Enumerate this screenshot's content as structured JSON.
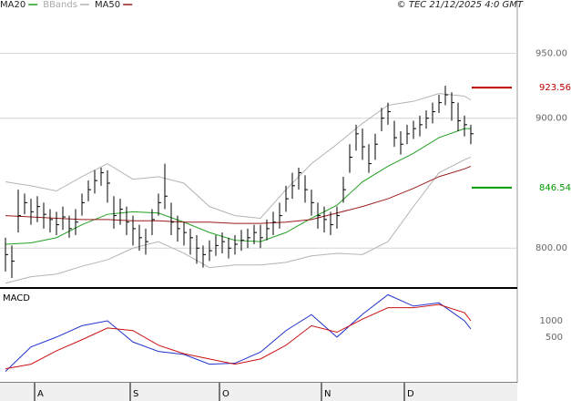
{
  "chart_data": [
    {
      "type": "ohlc",
      "copyright": "© TEC 21/12/2025 4:0 GMT",
      "color": "#000000",
      "high": [
        808,
        802,
        845,
        842,
        838,
        840,
        835,
        830,
        828,
        832,
        825,
        830,
        842,
        852,
        860,
        862,
        860,
        840,
        838,
        832,
        825,
        818,
        815,
        830,
        842,
        865,
        835,
        825,
        820,
        815,
        810,
        802,
        806,
        810,
        812,
        808,
        810,
        814,
        815,
        818,
        818,
        822,
        828,
        835,
        848,
        858,
        862,
        856,
        845,
        835,
        832,
        828,
        832,
        855,
        880,
        895,
        892,
        880,
        888,
        908,
        912,
        898,
        890,
        895,
        898,
        902,
        906,
        912,
        918,
        925,
        920,
        912,
        902,
        895
      ],
      "low": [
        782,
        777,
        812,
        826,
        818,
        820,
        815,
        812,
        810,
        814,
        808,
        810,
        825,
        836,
        842,
        848,
        835,
        815,
        818,
        810,
        802,
        798,
        795,
        810,
        825,
        830,
        810,
        805,
        802,
        795,
        788,
        785,
        790,
        794,
        796,
        792,
        795,
        798,
        800,
        803,
        800,
        806,
        810,
        815,
        828,
        838,
        845,
        835,
        825,
        815,
        812,
        810,
        815,
        835,
        858,
        875,
        868,
        858,
        868,
        890,
        895,
        878,
        872,
        880,
        884,
        886,
        892,
        896,
        904,
        910,
        898,
        890,
        886,
        880
      ],
      "close": [
        795,
        790,
        825,
        835,
        828,
        832,
        826,
        822,
        818,
        824,
        815,
        820,
        835,
        845,
        852,
        858,
        850,
        825,
        830,
        820,
        815,
        808,
        805,
        822,
        835,
        840,
        820,
        815,
        812,
        808,
        800,
        795,
        798,
        802,
        805,
        800,
        803,
        806,
        808,
        812,
        808,
        815,
        820,
        825,
        838,
        848,
        858,
        845,
        835,
        825,
        822,
        818,
        825,
        845,
        870,
        888,
        878,
        865,
        880,
        900,
        905,
        885,
        880,
        888,
        892,
        895,
        900,
        905,
        912,
        918,
        912,
        898,
        895,
        888
      ],
      "ylim": [
        770,
        991
      ],
      "yticks": [
        {
          "value": 800,
          "label": "800.00"
        },
        {
          "value": 900,
          "label": "900.00"
        },
        {
          "value": 950,
          "label": "950.00"
        }
      ],
      "grid": true,
      "series": [
        {
          "name": "MA20",
          "color": "#22a022",
          "x": [
            0,
            4,
            8,
            12,
            16,
            20,
            24,
            28,
            32,
            36,
            40,
            44,
            48,
            52,
            56,
            60,
            64,
            68,
            72,
            73
          ],
          "values": [
            803,
            804,
            808,
            818,
            826,
            828,
            827,
            820,
            812,
            806,
            805,
            812,
            823,
            833,
            851,
            863,
            873,
            885,
            892,
            892
          ]
        },
        {
          "name": "BBands",
          "color": "#b4b4b4",
          "x": [
            0,
            4,
            8,
            12,
            16,
            20,
            24,
            28,
            32,
            36,
            40,
            44,
            48,
            52,
            56,
            60,
            64,
            68,
            72,
            73
          ],
          "upper": [
            851,
            848,
            844,
            855,
            865,
            853,
            855,
            850,
            832,
            825,
            823,
            845,
            865,
            880,
            896,
            910,
            913,
            919,
            917,
            914
          ],
          "lower": [
            773,
            778,
            780,
            786,
            791,
            800,
            805,
            796,
            785,
            787,
            787,
            789,
            794,
            796,
            795,
            805,
            832,
            858,
            868,
            870
          ]
        },
        {
          "name": "MA50",
          "color": "#9b1c1c",
          "x": [
            0,
            4,
            8,
            12,
            16,
            20,
            24,
            28,
            32,
            36,
            40,
            44,
            48,
            52,
            56,
            60,
            64,
            68,
            72,
            73
          ],
          "values": [
            825,
            824,
            823,
            822,
            822,
            821,
            821,
            820,
            820,
            819,
            819,
            820,
            822,
            827,
            832,
            838,
            846,
            855,
            861,
            863
          ]
        }
      ],
      "price_levels": [
        {
          "value": 923.56,
          "color": "#c00000"
        },
        {
          "value": 846.54,
          "color": "#009900"
        }
      ]
    },
    {
      "type": "line",
      "title": "MACD",
      "categories": [
        null,
        null,
        null,
        null,
        null,
        "A",
        null,
        null,
        null,
        null,
        null,
        null,
        null,
        null,
        null,
        null,
        null,
        null,
        null,
        null,
        "S",
        null,
        null,
        null,
        null,
        null,
        null,
        null,
        null,
        null,
        null,
        null,
        null,
        null,
        "O",
        null,
        null,
        null,
        null,
        null,
        null,
        null,
        null,
        null,
        null,
        null,
        null,
        null,
        null,
        null,
        "N",
        null,
        null,
        null,
        null,
        null,
        null,
        null,
        null,
        null,
        null,
        null,
        null,
        "D",
        null,
        null,
        null,
        null,
        null,
        null,
        null,
        null,
        null,
        null
      ],
      "ylim": [
        -900,
        1950
      ],
      "yticks": [
        500,
        1000
      ],
      "series": [
        {
          "color": "#2233cc",
          "x": [
            0,
            4,
            8,
            12,
            16,
            20,
            24,
            28,
            32,
            36,
            40,
            44,
            48,
            52,
            56,
            60,
            64,
            68,
            72,
            73
          ],
          "values": [
            -555,
            200,
            500,
            850,
            1000,
            350,
            60,
            -30,
            -330,
            -300,
            40,
            700,
            1190,
            500,
            1200,
            1800,
            1450,
            1550,
            1000,
            750
          ]
        },
        {
          "color": "#cc1111",
          "x": [
            0,
            4,
            8,
            12,
            16,
            20,
            24,
            28,
            32,
            36,
            40,
            44,
            48,
            52,
            56,
            60,
            64,
            68,
            72,
            73
          ],
          "values": [
            -470,
            -330,
            80,
            420,
            780,
            700,
            250,
            -10,
            -170,
            -330,
            -170,
            250,
            850,
            650,
            1050,
            1400,
            1400,
            1500,
            1250,
            1000
          ]
        }
      ]
    }
  ]
}
